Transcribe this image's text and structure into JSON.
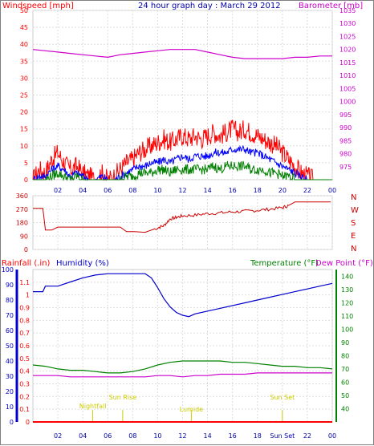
{
  "colors": {
    "wind_gust": "#ff0000",
    "wind_avg": "#0000ff",
    "wind_low": "#008000",
    "barometer": "#cc00cc",
    "direction": "#cc0000",
    "rain": "#ff0000",
    "humidity": "#0000cc",
    "temperature": "#008000",
    "dewpoint": "#cc00cc",
    "sun_events": "#cccc00",
    "grid": "#dddddd"
  },
  "chart_data": [
    {
      "id": "wind_baro",
      "type": "line",
      "title": "24 hour graph day : March 29 2012",
      "left_axis_label": "Windspeed [mph]",
      "right_axis_label": "Barometer [mb]",
      "x_ticks": [
        "02",
        "04",
        "06",
        "08",
        "10",
        "12",
        "14",
        "16",
        "18",
        "20",
        "22",
        "00"
      ],
      "x_range": [
        0,
        24
      ],
      "left_ylim": [
        0,
        50
      ],
      "left_yticks": [
        0,
        5,
        10,
        15,
        20,
        25,
        30,
        35,
        40,
        45,
        50
      ],
      "right_ylim": [
        970,
        1035
      ],
      "right_yticks": [
        975,
        980,
        985,
        990,
        995,
        1000,
        1005,
        1010,
        1015,
        1020,
        1025,
        1030,
        1035
      ],
      "series": [
        {
          "key": "gust",
          "axis": "left",
          "x": [
            0,
            0.5,
            1,
            1.5,
            2,
            2.5,
            3,
            3.5,
            4,
            4.5,
            5,
            5.5,
            6,
            6.5,
            7,
            7.5,
            8,
            8.5,
            9,
            9.5,
            10,
            10.5,
            11,
            11.5,
            12,
            12.5,
            13,
            13.5,
            14,
            14.5,
            15,
            15.5,
            16,
            16.5,
            17,
            17.5,
            18,
            18.5,
            19,
            19.5,
            20,
            20.5,
            21,
            21.5,
            22,
            22.5,
            23,
            23.5,
            24
          ],
          "values": [
            0,
            3,
            2,
            6,
            8,
            5,
            3,
            4,
            2,
            1,
            0,
            2,
            0,
            1,
            3,
            5,
            6,
            8,
            9,
            10,
            11,
            12,
            11,
            12,
            13,
            12,
            13,
            12,
            13,
            14,
            13,
            14,
            15,
            14,
            15,
            14,
            13,
            12,
            11,
            10,
            8,
            6,
            4,
            2,
            1,
            0,
            0,
            0,
            0
          ]
        },
        {
          "key": "avg",
          "axis": "left",
          "x": [
            0,
            0.5,
            1,
            1.5,
            2,
            2.5,
            3,
            3.5,
            4,
            4.5,
            5,
            5.5,
            6,
            6.5,
            7,
            7.5,
            8,
            8.5,
            9,
            9.5,
            10,
            10.5,
            11,
            11.5,
            12,
            12.5,
            13,
            13.5,
            14,
            14.5,
            15,
            15.5,
            16,
            16.5,
            17,
            17.5,
            18,
            18.5,
            19,
            19.5,
            20,
            20.5,
            21,
            21.5,
            22,
            22.5,
            23,
            23.5,
            24
          ],
          "values": [
            0,
            1,
            1,
            3,
            4,
            3,
            1,
            2,
            1,
            0,
            0,
            1,
            0,
            0,
            1,
            2,
            3,
            4,
            4,
            5,
            5,
            6,
            5,
            6,
            7,
            6,
            7,
            7,
            7,
            8,
            8,
            8,
            9,
            9,
            9,
            8,
            8,
            7,
            6,
            5,
            4,
            3,
            2,
            1,
            0,
            0,
            0,
            0,
            0
          ]
        },
        {
          "key": "low",
          "axis": "left",
          "x": [
            0,
            0.5,
            1,
            1.5,
            2,
            2.5,
            3,
            3.5,
            4,
            4.5,
            5,
            5.5,
            6,
            6.5,
            7,
            7.5,
            8,
            8.5,
            9,
            9.5,
            10,
            10.5,
            11,
            11.5,
            12,
            12.5,
            13,
            13.5,
            14,
            14.5,
            15,
            15.5,
            16,
            16.5,
            17,
            17.5,
            18,
            18.5,
            19,
            19.5,
            20,
            20.5,
            21,
            21.5,
            22,
            22.5,
            23,
            23.5,
            24
          ],
          "values": [
            0,
            0,
            0,
            1,
            2,
            1,
            0,
            1,
            0,
            0,
            0,
            0,
            0,
            0,
            0,
            1,
            1,
            2,
            2,
            2,
            3,
            3,
            2,
            3,
            3,
            3,
            3,
            3,
            3,
            4,
            3,
            4,
            4,
            4,
            4,
            3,
            3,
            3,
            2,
            2,
            1,
            1,
            0,
            0,
            0,
            0,
            0,
            0,
            0
          ]
        },
        {
          "key": "barometer",
          "axis": "right",
          "x": [
            0,
            1,
            2,
            3,
            4,
            5,
            6,
            7,
            8,
            9,
            10,
            11,
            12,
            13,
            14,
            15,
            16,
            17,
            18,
            19,
            20,
            21,
            22,
            23,
            24
          ],
          "values": [
            1020,
            1019.5,
            1019,
            1018.5,
            1018,
            1017.5,
            1017,
            1018,
            1018.5,
            1019,
            1019.5,
            1020,
            1020,
            1020,
            1019,
            1018,
            1017,
            1016.5,
            1016.5,
            1016.5,
            1016.5,
            1017,
            1017,
            1017.5,
            1017.5
          ]
        }
      ]
    },
    {
      "id": "direction",
      "type": "line",
      "left_yticks": [
        0,
        90,
        180,
        270,
        360
      ],
      "ylim": [
        0,
        360
      ],
      "right_labels": [
        "N",
        "W",
        "S",
        "E",
        "N"
      ],
      "x_range": [
        0,
        24
      ],
      "series": [
        {
          "key": "direction",
          "x": [
            0,
            0.8,
            1,
            1.5,
            2,
            3,
            4,
            5,
            6,
            7,
            7.5,
            8,
            9,
            10,
            10.5,
            11,
            11.5,
            12,
            13,
            14,
            15,
            16,
            17,
            18,
            19,
            20,
            20.5,
            21,
            21.5,
            22,
            23,
            24
          ],
          "values": [
            275,
            275,
            130,
            130,
            150,
            150,
            150,
            150,
            150,
            150,
            120,
            120,
            115,
            145,
            160,
            205,
            215,
            225,
            230,
            240,
            245,
            252,
            255,
            262,
            270,
            280,
            295,
            318,
            318,
            318,
            318,
            318
          ]
        }
      ]
    },
    {
      "id": "hum_temp",
      "type": "line",
      "left_axis_label_rain": "Rainfall (.in)",
      "left_axis_label_hum": "Humidity (%)",
      "right_axis_label_temp": "Temperature (°F)",
      "right_axis_label_dew": "Dew Point (°F)",
      "x_ticks": [
        "02",
        "04",
        "06",
        "08",
        "10",
        "12",
        "14",
        "16",
        "18",
        "Sun Set",
        "22",
        "00"
      ],
      "rain_ylim": [
        0,
        1.2
      ],
      "rain_yticks": [
        0,
        0.1,
        0.2,
        0.3,
        0.4,
        0.5,
        0.6,
        0.7,
        0.8,
        0.9,
        1,
        1.1
      ],
      "hum_ylim": [
        0,
        100
      ],
      "hum_yticks": [
        0,
        10,
        20,
        30,
        40,
        50,
        60,
        70,
        80,
        90,
        100
      ],
      "temp_ylim": [
        30,
        145
      ],
      "temp_yticks": [
        40,
        50,
        60,
        70,
        80,
        90,
        100,
        110,
        120,
        130,
        140
      ],
      "sun_events": [
        {
          "label": "Nightfall",
          "x": 4.8
        },
        {
          "label": "Sun Rise",
          "x": 7.2
        },
        {
          "label": "Lumide",
          "x": 12.7
        },
        {
          "label": "Sun Set",
          "x": 20.0
        }
      ],
      "series": [
        {
          "key": "humidity",
          "axis": "hum",
          "x": [
            0,
            0.8,
            1,
            1.5,
            2,
            3,
            4,
            5,
            6,
            7,
            8,
            9,
            9.5,
            10,
            10.5,
            11,
            11.5,
            12,
            12.5,
            13,
            14,
            15,
            16,
            17,
            18,
            19,
            20,
            21,
            22,
            23,
            24
          ],
          "values": [
            94,
            94,
            98,
            98,
            98,
            101,
            104,
            106,
            107,
            107,
            107,
            107,
            104,
            97,
            89,
            83,
            79,
            77,
            76,
            78,
            80,
            82,
            84,
            86,
            88,
            90,
            92,
            94,
            96,
            98,
            100
          ]
        },
        {
          "key": "temperature",
          "axis": "temp",
          "x": [
            0,
            1,
            2,
            3,
            4,
            5,
            6,
            7,
            8,
            9,
            10,
            11,
            12,
            13,
            14,
            15,
            16,
            17,
            18,
            19,
            20,
            21,
            22,
            23,
            24
          ],
          "values": [
            73,
            72,
            70,
            69,
            69,
            68,
            67,
            67,
            68,
            70,
            73,
            75,
            76,
            76,
            76,
            76,
            75,
            75,
            74,
            73,
            72,
            72,
            71,
            71,
            70
          ]
        },
        {
          "key": "dewpoint",
          "axis": "temp",
          "x": [
            0,
            1,
            2,
            3,
            4,
            5,
            6,
            7,
            8,
            9,
            10,
            11,
            12,
            13,
            14,
            15,
            16,
            17,
            18,
            19,
            20,
            21,
            22,
            23,
            24
          ],
          "values": [
            65,
            65,
            65,
            64,
            64,
            64,
            64,
            64,
            64,
            64,
            65,
            65,
            64,
            65,
            65,
            66,
            66,
            66,
            67,
            67,
            67,
            67,
            67,
            67,
            67
          ]
        },
        {
          "key": "rain",
          "axis": "rain",
          "x": [
            0,
            24
          ],
          "values": [
            0,
            0
          ]
        }
      ]
    }
  ]
}
